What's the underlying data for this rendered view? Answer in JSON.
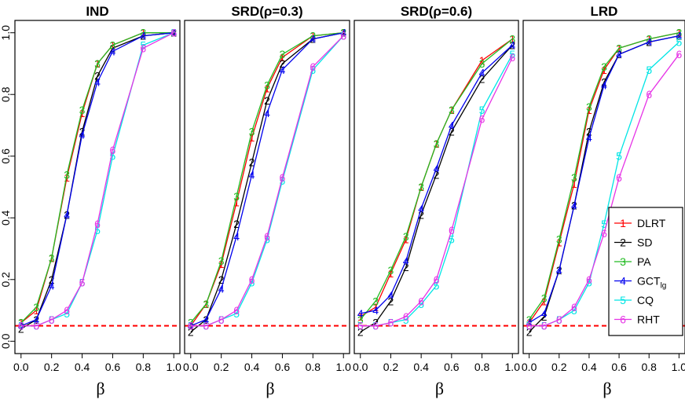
{
  "chart_data": [
    {
      "type": "line",
      "title": "IND",
      "xlabel": "β",
      "ylabel": "",
      "xlim": [
        0,
        1
      ],
      "ylim": [
        0,
        1
      ],
      "x": [
        0,
        0.1,
        0.2,
        0.3,
        0.4,
        0.5,
        0.6,
        0.8,
        1.0
      ],
      "xticks": [
        "0.0",
        "0.2",
        "0.4",
        "0.6",
        "0.8",
        "1.0"
      ],
      "yticks": [
        "0.0",
        "0.2",
        "0.4",
        "0.6",
        "0.8",
        "1.0"
      ],
      "reference_line": 0.05,
      "series": [
        {
          "name": "DLRT",
          "marker": "1",
          "values": [
            0.06,
            0.1,
            0.27,
            0.53,
            0.74,
            0.9,
            0.96,
            1.0,
            1.0
          ]
        },
        {
          "name": "SD",
          "marker": "2",
          "values": [
            0.04,
            0.07,
            0.2,
            0.41,
            0.68,
            0.86,
            0.95,
            0.99,
            1.0
          ]
        },
        {
          "name": "PA",
          "marker": "3",
          "values": [
            0.06,
            0.11,
            0.27,
            0.54,
            0.75,
            0.9,
            0.96,
            1.0,
            1.0
          ]
        },
        {
          "name": "GCT_lg",
          "marker": "4",
          "values": [
            0.05,
            0.07,
            0.18,
            0.41,
            0.67,
            0.84,
            0.94,
            0.99,
            1.0
          ]
        },
        {
          "name": "CQ",
          "marker": "5",
          "values": [
            0.05,
            0.05,
            0.07,
            0.09,
            0.19,
            0.36,
            0.6,
            0.96,
            1.0
          ]
        },
        {
          "name": "RHT",
          "marker": "6",
          "values": [
            0.05,
            0.05,
            0.07,
            0.1,
            0.19,
            0.38,
            0.62,
            0.95,
            1.0
          ]
        }
      ]
    },
    {
      "type": "line",
      "title": "SRD(ρ=0.3)",
      "xlabel": "β",
      "ylabel": "",
      "xlim": [
        0,
        1
      ],
      "ylim": [
        0,
        1
      ],
      "x": [
        0,
        0.1,
        0.2,
        0.3,
        0.4,
        0.5,
        0.6,
        0.8,
        1.0
      ],
      "xticks": [
        "0.0",
        "0.2",
        "0.4",
        "0.6",
        "0.8",
        "1.0"
      ],
      "yticks": [
        "0.0",
        "0.2",
        "0.4",
        "0.6",
        "0.8",
        "1.0"
      ],
      "reference_line": 0.05,
      "series": [
        {
          "name": "DLRT",
          "marker": "1",
          "values": [
            0.05,
            0.12,
            0.25,
            0.45,
            0.66,
            0.82,
            0.92,
            0.99,
            1.0
          ]
        },
        {
          "name": "SD",
          "marker": "2",
          "values": [
            0.03,
            0.07,
            0.2,
            0.38,
            0.58,
            0.78,
            0.9,
            0.98,
            1.0
          ]
        },
        {
          "name": "PA",
          "marker": "3",
          "values": [
            0.06,
            0.12,
            0.26,
            0.47,
            0.68,
            0.83,
            0.93,
            0.99,
            1.0
          ]
        },
        {
          "name": "GCT_lg",
          "marker": "4",
          "values": [
            0.05,
            0.07,
            0.17,
            0.34,
            0.54,
            0.74,
            0.88,
            0.98,
            1.0
          ]
        },
        {
          "name": "CQ",
          "marker": "5",
          "values": [
            0.05,
            0.05,
            0.07,
            0.09,
            0.19,
            0.33,
            0.52,
            0.88,
            0.99
          ]
        },
        {
          "name": "RHT",
          "marker": "6",
          "values": [
            0.05,
            0.05,
            0.07,
            0.1,
            0.2,
            0.34,
            0.53,
            0.89,
            0.99
          ]
        }
      ]
    },
    {
      "type": "line",
      "title": "SRD(ρ=0.6)",
      "xlabel": "β",
      "ylabel": "",
      "xlim": [
        0,
        1
      ],
      "ylim": [
        0,
        1
      ],
      "x": [
        0,
        0.1,
        0.2,
        0.3,
        0.4,
        0.5,
        0.6,
        0.8,
        1.0
      ],
      "xticks": [
        "0.0",
        "0.2",
        "0.4",
        "0.6",
        "0.8",
        "1.0"
      ],
      "yticks": [
        "0.0",
        "0.2",
        "0.4",
        "0.6",
        "0.8",
        "1.0"
      ],
      "reference_line": 0.05,
      "series": [
        {
          "name": "DLRT",
          "marker": "1",
          "values": [
            0.08,
            0.11,
            0.22,
            0.33,
            0.5,
            0.64,
            0.75,
            0.91,
            0.98
          ]
        },
        {
          "name": "SD",
          "marker": "2",
          "values": [
            0.03,
            0.06,
            0.13,
            0.24,
            0.41,
            0.54,
            0.68,
            0.85,
            0.96
          ]
        },
        {
          "name": "PA",
          "marker": "3",
          "values": [
            0.07,
            0.13,
            0.23,
            0.34,
            0.5,
            0.64,
            0.75,
            0.9,
            0.98
          ]
        },
        {
          "name": "GCT_lg",
          "marker": "4",
          "values": [
            0.09,
            0.1,
            0.15,
            0.26,
            0.43,
            0.56,
            0.7,
            0.87,
            0.96
          ]
        },
        {
          "name": "CQ",
          "marker": "5",
          "values": [
            0.05,
            0.05,
            0.06,
            0.07,
            0.12,
            0.18,
            0.33,
            0.75,
            0.93
          ]
        },
        {
          "name": "RHT",
          "marker": "6",
          "values": [
            0.05,
            0.05,
            0.06,
            0.08,
            0.13,
            0.2,
            0.36,
            0.72,
            0.92
          ]
        }
      ]
    },
    {
      "type": "line",
      "title": "LRD",
      "xlabel": "β",
      "ylabel": "",
      "xlim": [
        0,
        1
      ],
      "ylim": [
        0,
        1
      ],
      "x": [
        0,
        0.1,
        0.2,
        0.3,
        0.4,
        0.5,
        0.6,
        0.8,
        1.0
      ],
      "xticks": [
        "0.0",
        "0.2",
        "0.4",
        "0.6",
        "0.8",
        "1.0"
      ],
      "yticks": [
        "0.0",
        "0.2",
        "0.4",
        "0.6",
        "0.8",
        "1.0"
      ],
      "reference_line": 0.05,
      "series": [
        {
          "name": "DLRT",
          "marker": "1",
          "values": [
            0.06,
            0.13,
            0.32,
            0.51,
            0.75,
            0.88,
            0.95,
            0.98,
            1.0
          ]
        },
        {
          "name": "SD",
          "marker": "2",
          "values": [
            0.03,
            0.08,
            0.23,
            0.44,
            0.68,
            0.84,
            0.93,
            0.97,
            0.99
          ]
        },
        {
          "name": "PA",
          "marker": "3",
          "values": [
            0.07,
            0.14,
            0.33,
            0.53,
            0.76,
            0.89,
            0.95,
            0.98,
            1.0
          ]
        },
        {
          "name": "GCT_lg",
          "marker": "4",
          "values": [
            0.06,
            0.09,
            0.23,
            0.44,
            0.66,
            0.83,
            0.93,
            0.97,
            0.99
          ]
        },
        {
          "name": "CQ",
          "marker": "5",
          "values": [
            0.05,
            0.05,
            0.07,
            0.1,
            0.19,
            0.38,
            0.6,
            0.88,
            0.97
          ]
        },
        {
          "name": "RHT",
          "marker": "6",
          "values": [
            0.05,
            0.05,
            0.07,
            0.11,
            0.2,
            0.35,
            0.53,
            0.8,
            0.93
          ]
        }
      ]
    }
  ],
  "legend": {
    "placement": "right, inside LRD panel",
    "entries": [
      {
        "marker": "1",
        "label": "DLRT",
        "sub": ""
      },
      {
        "marker": "2",
        "label": "SD",
        "sub": ""
      },
      {
        "marker": "3",
        "label": "PA",
        "sub": ""
      },
      {
        "marker": "4",
        "label": "GCT",
        "sub": "lg"
      },
      {
        "marker": "5",
        "label": "CQ",
        "sub": ""
      },
      {
        "marker": "6",
        "label": "RHT",
        "sub": ""
      }
    ]
  },
  "colors": {
    "DLRT": "#ff0000",
    "SD": "#000000",
    "PA": "#22bb22",
    "GCT_lg": "#0000ee",
    "CQ": "#00e5e5",
    "RHT": "#e633e6",
    "reference_line": "#ff0000"
  }
}
